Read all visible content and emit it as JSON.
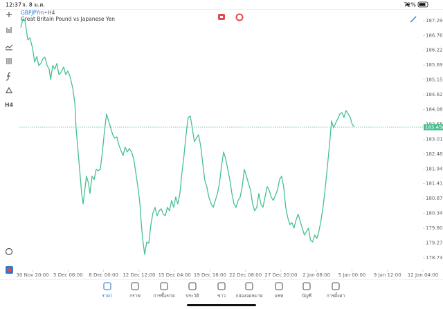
{
  "status_bar": {
    "time": "12:37",
    "date": "จ. 8 ม.ค.",
    "battery": "72%"
  },
  "header": {
    "symbol": "GBPJPYm",
    "timeframe": "H4",
    "description": "Great Britain Pound vs Japanese Yen"
  },
  "toolbar": {
    "timeframe": "H4"
  },
  "chart_data": {
    "type": "line",
    "color": "#45c08e",
    "x": [
      -4.0,
      -3.3,
      -2.6,
      -1.6,
      -0.9,
      0.0,
      0.7,
      1.4,
      2.1,
      2.8,
      3.5,
      4.2,
      4.9,
      5.6,
      6.1,
      6.8,
      7.5,
      8.2,
      8.9,
      9.6,
      10.5,
      11.2,
      11.9,
      12.6,
      13.6,
      14.3,
      14.7,
      15.2,
      15.9,
      16.6,
      17.1,
      17.8,
      18.2,
      18.9,
      19.4,
      20.1,
      20.8,
      21.5,
      22.2,
      22.9,
      23.6,
      24.3,
      25.0,
      25.7,
      26.4,
      27.1,
      27.8,
      28.5,
      29.2,
      29.9,
      30.6,
      31.3,
      32.0,
      32.7,
      33.5,
      34.2,
      34.9,
      35.6,
      36.3,
      36.7,
      37.2,
      37.9,
      38.6,
      39.3,
      40.0,
      40.7,
      41.4,
      42.1,
      42.8,
      43.5,
      44.2,
      44.9,
      45.6,
      46.3,
      47.0,
      47.7,
      48.4,
      49.1,
      49.8,
      50.5,
      51.2,
      51.9,
      52.6,
      53.3,
      54.0,
      54.7,
      55.4,
      56.1,
      56.8,
      57.5,
      58.2,
      58.9,
      59.6,
      60.4,
      61.1,
      61.8,
      62.5,
      63.2,
      63.9,
      64.6,
      65.3,
      66.0,
      66.7,
      67.4,
      68.1,
      68.8,
      69.5,
      70.2,
      70.9,
      71.6,
      72.3,
      73.0,
      73.7,
      74.4,
      75.1,
      75.8,
      76.5,
      77.2,
      77.9,
      78.6,
      79.3,
      80.0,
      80.7,
      81.4,
      82.1,
      82.8,
      83.5,
      84.2,
      84.9,
      85.6,
      86.3,
      87.0,
      87.7,
      88.4,
      89.1,
      89.8,
      90.5,
      91.2,
      91.9,
      92.6,
      93.3,
      94.0,
      94.7,
      95.4,
      96.1,
      96.8,
      97.5,
      98.2,
      98.9,
      99.6,
      100.4,
      101.1,
      101.8,
      102.5,
      103.2,
      103.9,
      104.6,
      105.3,
      106.0,
      106.7,
      107.4,
      108.1,
      108.8
    ],
    "values": [
      187.045,
      187.345,
      187.295,
      186.596,
      186.671,
      186.297,
      185.798,
      185.997,
      185.673,
      185.748,
      185.922,
      185.972,
      185.673,
      185.548,
      185.173,
      185.673,
      185.548,
      185.748,
      185.348,
      185.423,
      185.623,
      185.348,
      185.473,
      185.298,
      184.849,
      184.3,
      183.426,
      182.802,
      181.929,
      181.055,
      180.681,
      181.305,
      181.679,
      181.429,
      181.055,
      181.679,
      181.554,
      181.929,
      181.879,
      181.929,
      182.553,
      183.302,
      183.925,
      183.676,
      183.426,
      183.177,
      183.052,
      183.102,
      182.802,
      182.603,
      182.428,
      182.728,
      182.553,
      182.677,
      182.553,
      182.303,
      181.804,
      181.305,
      180.681,
      180.057,
      179.433,
      178.859,
      179.308,
      179.258,
      179.932,
      180.357,
      180.556,
      180.257,
      180.431,
      180.506,
      180.307,
      180.257,
      180.556,
      180.431,
      180.806,
      180.556,
      180.93,
      180.681,
      181.055,
      181.804,
      182.428,
      183.177,
      183.801,
      183.851,
      183.426,
      182.927,
      183.052,
      183.177,
      182.802,
      182.178,
      181.554,
      181.305,
      180.93,
      180.681,
      180.556,
      180.806,
      181.055,
      181.429,
      182.053,
      182.553,
      182.303,
      181.929,
      181.554,
      181.055,
      180.681,
      180.556,
      180.806,
      180.93,
      181.305,
      181.929,
      181.679,
      181.429,
      181.18,
      180.681,
      180.431,
      180.556,
      181.055,
      180.681,
      180.556,
      180.93,
      181.305,
      181.18,
      180.93,
      180.806,
      180.98,
      181.18,
      181.554,
      181.679,
      181.305,
      180.556,
      180.181,
      179.932,
      180.007,
      179.807,
      180.107,
      180.307,
      180.057,
      179.807,
      179.558,
      179.683,
      179.807,
      179.358,
      179.308,
      179.558,
      179.433,
      179.683,
      180.057,
      180.556,
      181.18,
      181.929,
      182.802,
      183.676,
      183.426,
      183.601,
      183.751,
      183.925,
      183.975,
      183.801,
      184.05,
      183.925,
      183.801,
      183.551,
      183.45
    ],
    "xlim": [
      -4,
      132
    ],
    "xticks": [
      {
        "value": 0,
        "label": "30 Nov 20:00"
      },
      {
        "value": 12,
        "label": "5 Dec 08:00"
      },
      {
        "value": 24,
        "label": "8 Dec 00:00"
      },
      {
        "value": 36,
        "label": "12 Dec 12:00"
      },
      {
        "value": 48,
        "label": "15 Dec 04:00"
      },
      {
        "value": 60,
        "label": "19 Dec 16:00"
      },
      {
        "value": 72,
        "label": "22 Dec 08:00"
      },
      {
        "value": 84,
        "label": "27 Dec 20:00"
      },
      {
        "value": 96,
        "label": "2 Jan 08:00"
      },
      {
        "value": 108,
        "label": "5 Jan 00:00"
      },
      {
        "value": 120,
        "label": "9 Jan 12:00"
      },
      {
        "value": 132,
        "label": "12 Jan 04:00"
      }
    ],
    "ylim": [
      178.36,
      187.69
    ],
    "yticks": [
      187.295,
      {
        "value": 186.76,
        "label": "186.760"
      },
      186.225,
      {
        "value": 185.69,
        "label": "185.690"
      },
      185.155,
      {
        "value": 184.62,
        "label": "184.620"
      },
      184.085,
      {
        "value": 183.55,
        "label": "183.550"
      },
      183.015,
      {
        "value": 182.48,
        "label": "182.480"
      },
      181.945,
      {
        "value": 181.41,
        "label": "181.410"
      },
      180.875,
      {
        "value": 180.34,
        "label": "180.340"
      },
      179.805,
      {
        "value": 179.27,
        "label": "179.270"
      },
      178.735
    ],
    "current_price": {
      "value": 183.45,
      "label": "183.450"
    }
  },
  "tabs": [
    "ราคา",
    "กราฟ",
    "การซื้อขาย",
    "ประวัติ",
    "ข่าว",
    "กล่องจดหมาย",
    "แชท",
    "บัญชี",
    "การตั้งค่า"
  ]
}
